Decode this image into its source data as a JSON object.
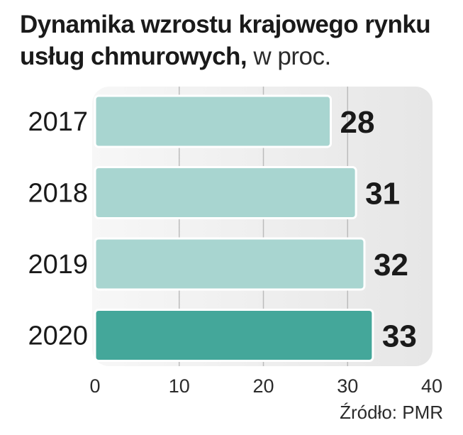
{
  "header": {
    "title_bold_line1": "Dynamika wzrostu krajowego rynku",
    "title_bold_line2": "usług chmurowych,",
    "title_light": " w proc."
  },
  "footer": {
    "source": "Źródło: PMR"
  },
  "colors": {
    "bar_light": "#a8d5d0",
    "bar_highlight": "#44a79a",
    "plot_bg": "#eeeeee",
    "grid": "#bcbcbc",
    "bar_border": "#ffffff"
  },
  "chart_data": {
    "type": "bar",
    "orientation": "horizontal",
    "categories": [
      "2017",
      "2018",
      "2019",
      "2020"
    ],
    "values": [
      28,
      31,
      32,
      33
    ],
    "highlight_index": 3,
    "xlim": [
      0,
      40
    ],
    "xticks": [
      0,
      10,
      20,
      30,
      40
    ],
    "grid": true
  }
}
